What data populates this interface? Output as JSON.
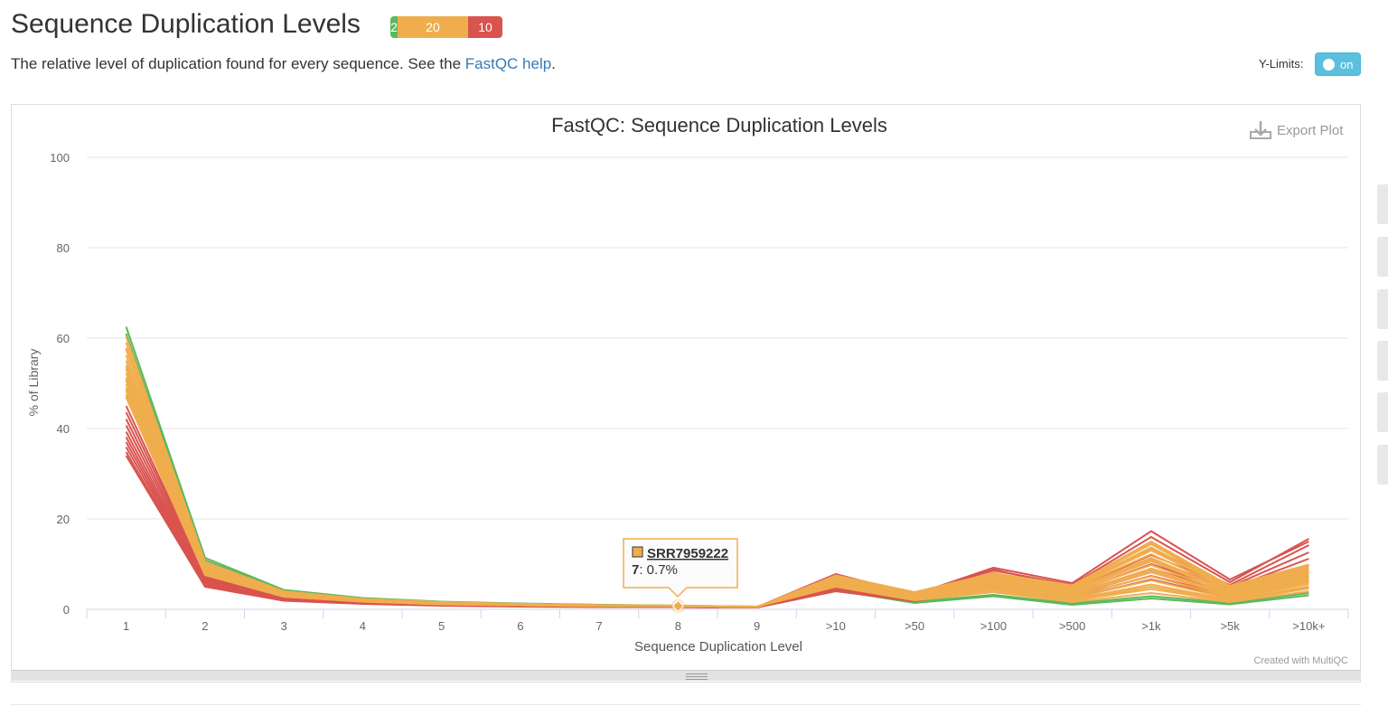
{
  "header": {
    "title": "Sequence Duplication Levels",
    "status": {
      "pass": "2",
      "warn": "20",
      "fail": "10"
    },
    "description_prefix": "The relative level of duplication found for every sequence. See the ",
    "help_link": "FastQC help",
    "description_suffix": "."
  },
  "controls": {
    "ylimits_label": "Y-Limits:",
    "toggle_label": "on"
  },
  "plot": {
    "export_label": "Export Plot",
    "export_icon": "download-icon",
    "credit": "Created with MultiQC"
  },
  "colors": {
    "pass": "#5cb85c",
    "warn": "#f0ad4e",
    "fail": "#d9534f",
    "toggle": "#5bc0de",
    "link": "#337ab7"
  },
  "tooltip": {
    "sample": "SRR7959222",
    "category": "7",
    "value_text": ": 0.7%"
  },
  "chart_data": {
    "type": "line",
    "title": "FastQC: Sequence Duplication Levels",
    "xlabel": "Sequence Duplication Level",
    "ylabel": "% of Library",
    "categories": [
      "1",
      "2",
      "3",
      "4",
      "5",
      "6",
      "7",
      "8",
      "9",
      ">10",
      ">50",
      ">100",
      ">500",
      ">1k",
      ">5k",
      ">10k+"
    ],
    "ylim": [
      0,
      100
    ],
    "yticks": [
      0,
      20,
      40,
      60,
      80,
      100
    ],
    "grid": true,
    "legend": "none",
    "series": [
      {
        "status": "pass",
        "values": [
          62.5,
          11.4,
          4.3,
          2.5,
          1.7,
          1.3,
          1.0,
          0.8,
          0.6,
          4.2,
          1.4,
          2.9,
          1.0,
          2.4,
          1.1,
          3.1
        ]
      },
      {
        "status": "pass",
        "values": [
          61.0,
          10.9,
          4.1,
          2.4,
          1.6,
          1.2,
          1.0,
          0.8,
          0.6,
          4.6,
          1.7,
          3.2,
          1.3,
          2.9,
          1.4,
          3.6
        ]
      },
      {
        "status": "warn",
        "values": [
          60.3,
          10.5,
          4.0,
          2.3,
          1.6,
          1.2,
          0.9,
          0.8,
          0.6,
          5.0,
          2.0,
          3.8,
          1.6,
          3.6,
          1.6,
          4.0
        ]
      },
      {
        "status": "warn",
        "values": [
          59.0,
          10.2,
          3.9,
          2.3,
          1.5,
          1.2,
          0.9,
          0.7,
          0.6,
          5.4,
          2.2,
          4.2,
          1.9,
          4.5,
          1.8,
          4.6
        ]
      },
      {
        "status": "warn",
        "values": [
          57.5,
          9.9,
          3.8,
          2.2,
          1.5,
          1.1,
          0.9,
          0.7,
          0.6,
          5.8,
          2.5,
          4.6,
          2.2,
          5.5,
          2.1,
          5.1
        ]
      },
      {
        "status": "warn",
        "values": [
          56.2,
          9.6,
          3.7,
          2.2,
          1.5,
          1.1,
          0.9,
          0.7,
          0.6,
          6.0,
          2.7,
          5.0,
          2.5,
          6.4,
          2.4,
          5.6
        ]
      },
      {
        "status": "warn",
        "values": [
          55.0,
          9.3,
          3.6,
          2.1,
          1.4,
          1.1,
          0.9,
          0.7,
          0.5,
          6.2,
          2.9,
          5.4,
          2.8,
          7.3,
          2.7,
          6.0
        ]
      },
      {
        "status": "warn",
        "values": [
          54.0,
          9.0,
          3.5,
          2.1,
          1.4,
          1.1,
          0.8,
          0.7,
          0.5,
          6.4,
          3.0,
          5.8,
          3.1,
          8.2,
          3.0,
          6.4
        ]
      },
      {
        "status": "warn",
        "values": [
          53.1,
          8.8,
          3.4,
          2.0,
          1.4,
          1.0,
          0.8,
          0.7,
          0.5,
          6.6,
          3.1,
          6.1,
          3.4,
          9.0,
          3.2,
          6.8
        ]
      },
      {
        "status": "warn",
        "values": [
          52.2,
          8.6,
          3.3,
          2.0,
          1.3,
          1.0,
          0.8,
          0.7,
          0.5,
          6.8,
          3.2,
          6.4,
          3.7,
          9.8,
          3.5,
          7.2
        ]
      },
      {
        "status": "warn",
        "values": [
          51.3,
          8.4,
          3.2,
          1.9,
          1.3,
          1.0,
          0.8,
          0.7,
          0.5,
          6.9,
          3.3,
          6.7,
          4.0,
          10.6,
          3.8,
          7.6
        ]
      },
      {
        "status": "warn",
        "values": [
          50.5,
          8.2,
          3.1,
          1.9,
          1.3,
          1.0,
          0.8,
          0.7,
          0.5,
          7.0,
          3.4,
          7.0,
          4.3,
          11.4,
          4.0,
          8.0
        ]
      },
      {
        "status": "warn",
        "values": [
          49.8,
          8.0,
          3.0,
          1.8,
          1.2,
          0.9,
          0.8,
          0.7,
          0.5,
          7.1,
          3.5,
          7.2,
          4.6,
          12.2,
          4.3,
          8.4
        ]
      },
      {
        "status": "warn",
        "values": [
          49.0,
          7.9,
          3.0,
          1.8,
          1.2,
          0.9,
          0.8,
          0.7,
          0.5,
          7.2,
          3.6,
          7.4,
          4.8,
          13.0,
          4.6,
          8.8
        ]
      },
      {
        "status": "warn",
        "values": [
          48.3,
          7.8,
          2.9,
          1.8,
          1.2,
          0.9,
          0.8,
          0.7,
          0.5,
          7.3,
          3.7,
          7.6,
          5.0,
          13.7,
          4.8,
          9.2
        ]
      },
      {
        "status": "warn",
        "values": [
          47.5,
          7.7,
          2.9,
          1.7,
          1.2,
          0.9,
          0.7,
          0.7,
          0.5,
          7.4,
          3.7,
          7.8,
          5.2,
          14.4,
          5.0,
          9.6
        ]
      },
      {
        "status": "warn",
        "values": [
          46.9,
          7.6,
          2.8,
          1.7,
          1.1,
          0.9,
          0.7,
          0.7,
          0.5,
          7.5,
          3.8,
          8.0,
          5.3,
          15.0,
          5.2,
          9.9
        ]
      },
      {
        "status": "warn",
        "values": [
          57.8,
          10.1,
          3.9,
          2.2,
          1.5,
          1.2,
          0.9,
          0.7,
          0.6,
          5.6,
          2.3,
          4.4,
          2.0,
          5.0,
          1.9,
          4.8
        ]
      },
      {
        "status": "warn",
        "values": [
          53.6,
          8.9,
          3.4,
          2.0,
          1.4,
          1.0,
          0.8,
          0.7,
          0.5,
          6.5,
          3.0,
          5.9,
          3.2,
          8.6,
          3.1,
          6.6
        ]
      },
      {
        "status": "warn",
        "values": [
          50.9,
          8.3,
          3.1,
          1.9,
          1.3,
          1.0,
          0.8,
          0.7,
          0.5,
          6.9,
          3.3,
          6.8,
          4.1,
          11.0,
          3.9,
          7.8
        ]
      },
      {
        "status": "warn",
        "values": [
          48.7,
          7.8,
          2.9,
          1.8,
          1.2,
          0.9,
          0.8,
          0.7,
          0.5,
          7.2,
          3.6,
          7.5,
          4.9,
          13.3,
          4.7,
          9.0
        ]
      },
      {
        "status": "warn",
        "values": [
          47.1,
          7.6,
          2.8,
          1.7,
          1.1,
          0.9,
          0.7,
          0.7,
          0.5,
          7.4,
          3.7,
          7.9,
          5.2,
          14.7,
          5.1,
          9.8
        ]
      },
      {
        "status": "fail",
        "values": [
          45.0,
          7.5,
          2.7,
          1.7,
          1.1,
          0.9,
          0.7,
          0.6,
          0.5,
          7.6,
          3.5,
          8.6,
          5.4,
          16.0,
          6.0,
          15.6
        ]
      },
      {
        "status": "fail",
        "values": [
          43.6,
          7.2,
          2.6,
          1.6,
          1.1,
          0.8,
          0.7,
          0.6,
          0.5,
          7.8,
          3.3,
          9.2,
          5.8,
          17.3,
          6.6,
          15.0
        ]
      },
      {
        "status": "fail",
        "values": [
          42.1,
          6.9,
          2.5,
          1.6,
          1.0,
          0.8,
          0.7,
          0.6,
          0.5,
          7.2,
          3.2,
          8.8,
          4.8,
          13.5,
          5.4,
          14.2
        ]
      },
      {
        "status": "fail",
        "values": [
          40.7,
          6.6,
          2.4,
          1.5,
          1.0,
          0.8,
          0.6,
          0.6,
          0.5,
          6.8,
          3.0,
          8.1,
          4.4,
          12.0,
          5.0,
          12.6
        ]
      },
      {
        "status": "fail",
        "values": [
          39.3,
          6.3,
          2.3,
          1.5,
          1.0,
          0.8,
          0.6,
          0.5,
          0.5,
          6.2,
          2.8,
          7.5,
          4.0,
          11.0,
          4.6,
          11.2
        ]
      },
      {
        "status": "fail",
        "values": [
          38.1,
          6.0,
          2.2,
          1.4,
          0.9,
          0.7,
          0.6,
          0.5,
          0.4,
          5.6,
          2.6,
          7.0,
          3.6,
          10.0,
          4.2,
          9.6
        ]
      },
      {
        "status": "fail",
        "values": [
          37.0,
          5.7,
          2.1,
          1.4,
          0.9,
          0.7,
          0.6,
          0.5,
          0.4,
          5.2,
          2.4,
          6.4,
          3.3,
          9.0,
          3.8,
          8.4
        ]
      },
      {
        "status": "fail",
        "values": [
          35.9,
          5.5,
          2.0,
          1.3,
          0.9,
          0.7,
          0.6,
          0.5,
          0.4,
          4.8,
          2.2,
          5.8,
          3.0,
          8.2,
          3.4,
          7.4
        ]
      },
      {
        "status": "fail",
        "values": [
          34.8,
          5.3,
          2.0,
          1.3,
          0.9,
          0.7,
          0.5,
          0.5,
          0.4,
          4.4,
          2.0,
          5.2,
          2.7,
          7.4,
          3.0,
          6.8
        ]
      },
      {
        "status": "fail",
        "values": [
          34.0,
          5.0,
          1.9,
          1.2,
          0.8,
          0.6,
          0.5,
          0.5,
          0.4,
          4.0,
          1.8,
          4.6,
          2.4,
          6.6,
          2.6,
          6.2
        ]
      }
    ]
  }
}
